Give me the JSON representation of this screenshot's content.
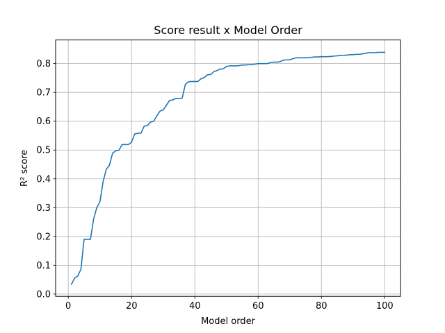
{
  "chart_data": {
    "type": "line",
    "title": "Score result x Model Order",
    "xlabel": "Model order",
    "ylabel": "R² score",
    "xlim": [
      -4.0,
      105.0
    ],
    "ylim": [
      -0.008,
      0.882
    ],
    "grid": true,
    "legend": "none",
    "x_ticks": [
      0,
      20,
      40,
      60,
      80,
      100
    ],
    "y_ticks": [
      0.0,
      0.1,
      0.2,
      0.3,
      0.4,
      0.5,
      0.6,
      0.7,
      0.8
    ],
    "x_tick_labels": [
      "0",
      "20",
      "40",
      "60",
      "80",
      "100"
    ],
    "y_tick_labels": [
      "0.0",
      "0.1",
      "0.2",
      "0.3",
      "0.4",
      "0.5",
      "0.6",
      "0.7",
      "0.8"
    ],
    "series": [
      {
        "color": "#1f77b4",
        "x": [
          1,
          2,
          3,
          4,
          5,
          6,
          7,
          8,
          9,
          10,
          11,
          12,
          13,
          14,
          15,
          16,
          17,
          18,
          19,
          20,
          21,
          22,
          23,
          24,
          25,
          26,
          27,
          28,
          29,
          30,
          31,
          32,
          33,
          34,
          35,
          36,
          37,
          38,
          39,
          40,
          41,
          42,
          43,
          44,
          45,
          46,
          47,
          48,
          49,
          50,
          51,
          52,
          53,
          54,
          55,
          56,
          57,
          58,
          59,
          60,
          61,
          62,
          63,
          64,
          65,
          66,
          67,
          68,
          69,
          70,
          71,
          72,
          73,
          74,
          75,
          76,
          77,
          78,
          79,
          80,
          81,
          82,
          83,
          84,
          85,
          86,
          87,
          88,
          89,
          90,
          91,
          92,
          93,
          94,
          95,
          96,
          97,
          98,
          99,
          100
        ],
        "values": [
          0.034,
          0.055,
          0.063,
          0.086,
          0.19,
          0.19,
          0.19,
          0.26,
          0.3,
          0.32,
          0.39,
          0.433,
          0.447,
          0.489,
          0.497,
          0.499,
          0.519,
          0.519,
          0.519,
          0.527,
          0.556,
          0.558,
          0.559,
          0.583,
          0.585,
          0.597,
          0.6,
          0.619,
          0.635,
          0.639,
          0.655,
          0.672,
          0.674,
          0.679,
          0.679,
          0.68,
          0.728,
          0.737,
          0.738,
          0.738,
          0.738,
          0.748,
          0.752,
          0.761,
          0.762,
          0.772,
          0.776,
          0.781,
          0.782,
          0.79,
          0.792,
          0.792,
          0.792,
          0.793,
          0.795,
          0.795,
          0.796,
          0.797,
          0.798,
          0.8,
          0.8,
          0.8,
          0.8,
          0.804,
          0.805,
          0.805,
          0.807,
          0.812,
          0.813,
          0.813,
          0.817,
          0.82,
          0.82,
          0.82,
          0.82,
          0.821,
          0.822,
          0.823,
          0.823,
          0.824,
          0.824,
          0.824,
          0.825,
          0.826,
          0.827,
          0.828,
          0.829,
          0.829,
          0.831,
          0.831,
          0.832,
          0.832,
          0.834,
          0.836,
          0.838,
          0.838,
          0.838,
          0.839,
          0.839,
          0.839
        ]
      }
    ]
  }
}
